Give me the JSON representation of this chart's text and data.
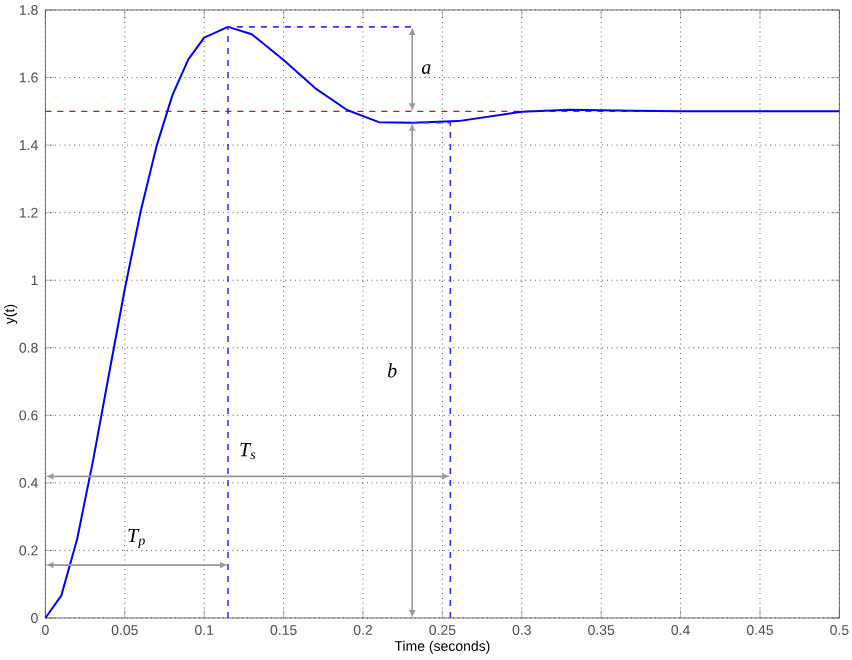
{
  "chart_data": {
    "type": "line",
    "xlabel": "Time (seconds)",
    "ylabel": "y(t)",
    "xlim": [
      0,
      0.5
    ],
    "ylim": [
      0,
      1.8
    ],
    "xticks": [
      0,
      0.05,
      0.1,
      0.15,
      0.2,
      0.25,
      0.3,
      0.35,
      0.4,
      0.45,
      0.5
    ],
    "yticks": [
      0,
      0.2,
      0.4,
      0.6,
      0.8,
      1,
      1.2,
      1.4,
      1.6,
      1.8
    ],
    "grid": true,
    "series": [
      {
        "color": "#0000ff",
        "x": [
          0,
          0.01,
          0.02,
          0.03,
          0.04,
          0.05,
          0.06,
          0.07,
          0.08,
          0.09,
          0.1,
          0.115,
          0.13,
          0.15,
          0.17,
          0.19,
          0.21,
          0.231,
          0.26,
          0.3,
          0.33,
          0.37,
          0.4,
          0.45,
          0.5
        ],
        "values": [
          0,
          0.066,
          0.234,
          0.466,
          0.721,
          0.974,
          1.204,
          1.397,
          1.548,
          1.654,
          1.718,
          1.75,
          1.728,
          1.652,
          1.568,
          1.504,
          1.468,
          1.466,
          1.471,
          1.499,
          1.505,
          1.502,
          1.5,
          1.5,
          1.5
        ]
      },
      {
        "color": "#3333ff",
        "line_style": "dashed",
        "x": [
          0.115,
          0.115,
          0.231
        ],
        "values": [
          0,
          1.75,
          1.75
        ]
      },
      {
        "color": "#3333ff",
        "line_style": "dashed",
        "x": [
          0.255,
          0.255,
          0.231
        ],
        "values": [
          0,
          1.466,
          1.466
        ]
      }
    ],
    "ref_lines": [
      {
        "axis": "y",
        "value": 1.5,
        "color": "#ff0000",
        "line_style": "dashed"
      }
    ],
    "annotations": [
      "a",
      "b",
      "T$_{s}$",
      "T$_{p}$"
    ]
  }
}
